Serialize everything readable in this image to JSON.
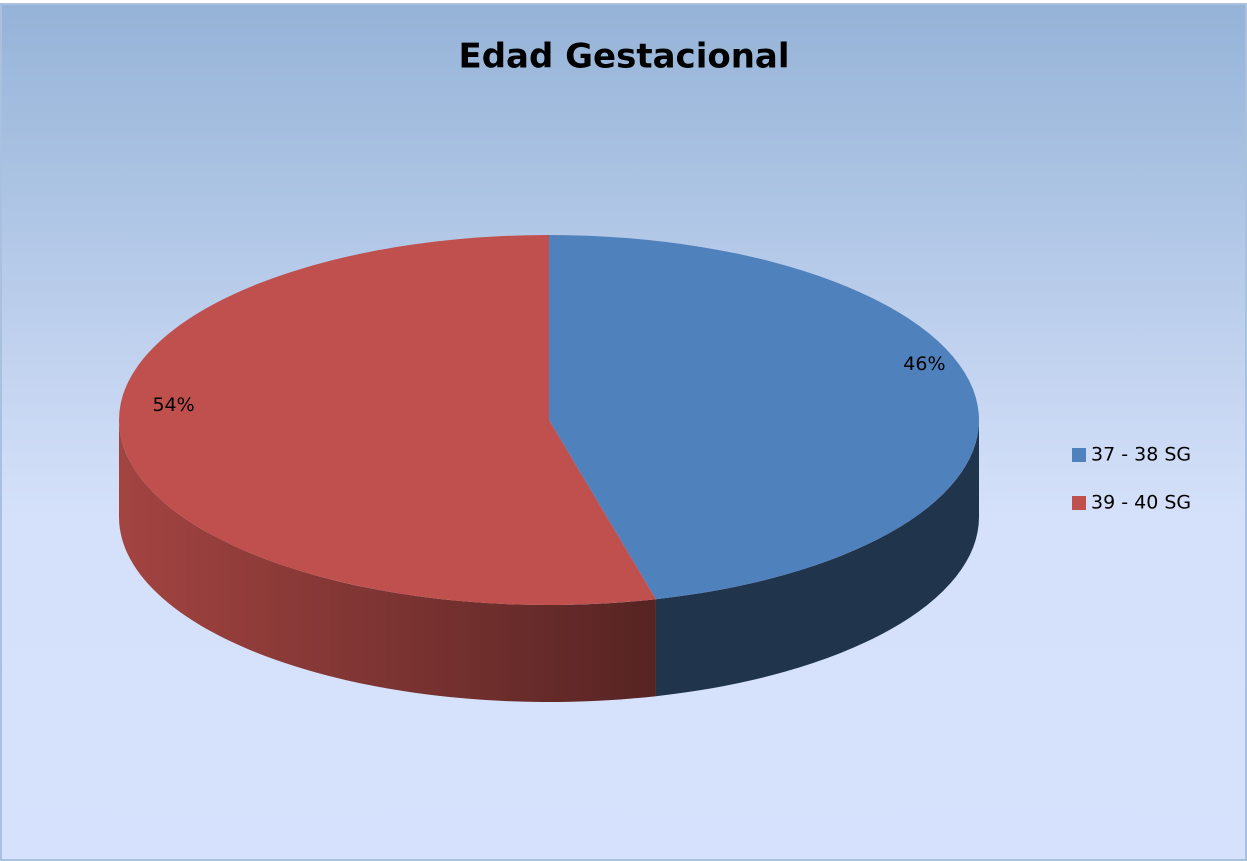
{
  "chart_data": {
    "type": "pie3d",
    "title": "Edad Gestacional",
    "categories": [
      "37 - 38 SG",
      "39 - 40 SG"
    ],
    "values": [
      46,
      54
    ],
    "value_labels": [
      "46%",
      "54%"
    ],
    "colors": [
      "#4f81bd",
      "#c0504d"
    ],
    "legend": "right"
  }
}
